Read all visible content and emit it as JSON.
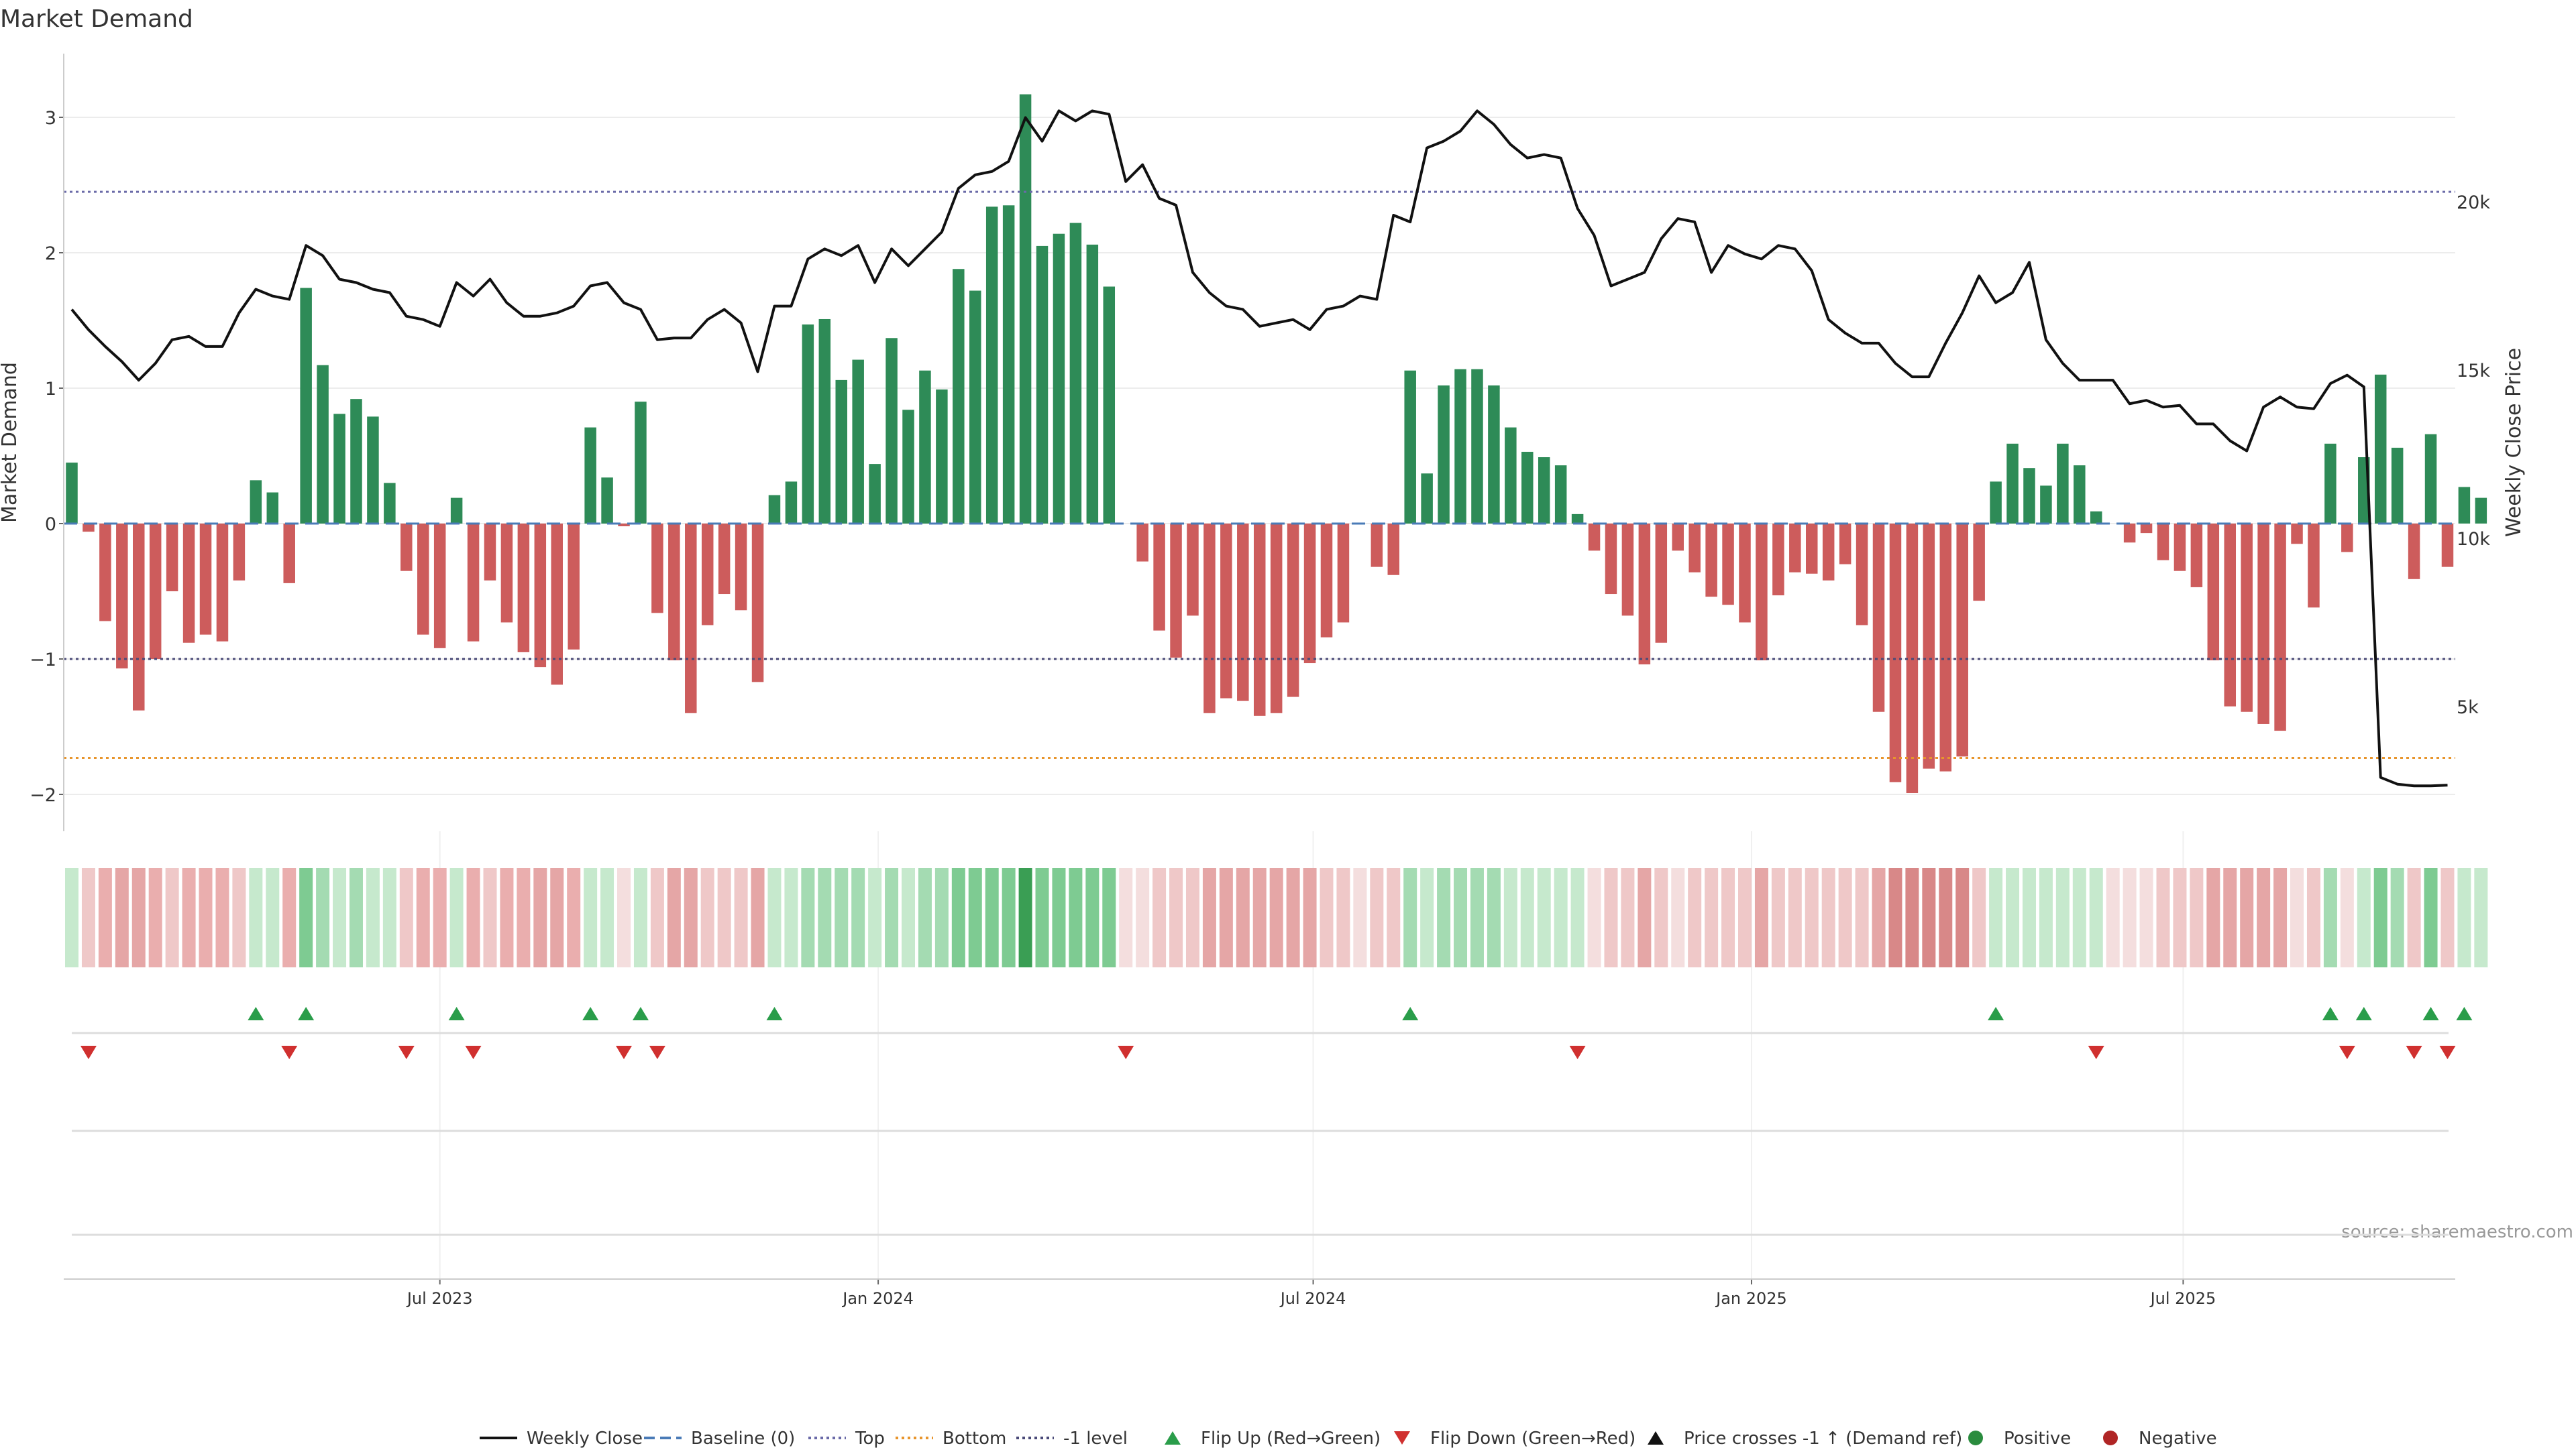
{
  "chart_data": {
    "type": "bar",
    "title": "Market Demand",
    "ylabel": "Market Demand",
    "y2label": "Weekly Close Price",
    "ylim": [
      -2.3,
      3.5
    ],
    "y2lim": [
      1300,
      24400
    ],
    "yticks": [
      {
        "v": 3,
        "t": "3"
      },
      {
        "v": 2,
        "t": "2"
      },
      {
        "v": 1,
        "t": "1"
      },
      {
        "v": 0,
        "t": "0"
      },
      {
        "v": -1,
        "t": "−1"
      },
      {
        "v": -2,
        "t": "−2"
      }
    ],
    "y2ticks": [
      {
        "v": 20000,
        "t": "20k"
      },
      {
        "v": 15000,
        "t": "15k"
      },
      {
        "v": 10000,
        "t": "10k"
      },
      {
        "v": 5000,
        "t": "5k"
      }
    ],
    "xticks": [
      {
        "i": 22,
        "t": "Jul 2023"
      },
      {
        "i": 48.2,
        "t": "Jan 2024"
      },
      {
        "i": 74.2,
        "t": "Jul 2024"
      },
      {
        "i": 100.4,
        "t": "Jan 2025"
      },
      {
        "i": 126.2,
        "t": "Jul 2025"
      }
    ],
    "ref_lines": {
      "top": 2.45,
      "bottom": -1.73,
      "minus_one": -1
    },
    "series": [
      {
        "name": "Market Demand",
        "values": [
          0.45,
          -0.06,
          -0.72,
          -1.07,
          -1.38,
          -1.0,
          -0.5,
          -0.88,
          -0.82,
          -0.87,
          -0.42,
          0.32,
          0.23,
          -0.44,
          1.74,
          1.17,
          0.81,
          0.92,
          0.79,
          0.3,
          -0.35,
          -0.82,
          -0.92,
          0.19,
          -0.87,
          -0.42,
          -0.73,
          -0.95,
          -1.06,
          -1.19,
          -0.93,
          0.71,
          0.34,
          -0.02,
          0.9,
          -0.66,
          -1.01,
          -1.4,
          -0.75,
          -0.52,
          -0.64,
          -1.17,
          0.21,
          0.31,
          1.47,
          1.51,
          1.06,
          1.21,
          0.44,
          1.37,
          0.84,
          1.13,
          0.99,
          1.88,
          1.72,
          2.34,
          2.35,
          3.17,
          2.05,
          2.14,
          2.22,
          2.06,
          1.75,
          0.0,
          -0.28,
          -0.79,
          -0.99,
          -0.68,
          -1.4,
          -1.29,
          -1.31,
          -1.42,
          -1.4,
          -1.28,
          -1.03,
          -0.84,
          -0.73,
          -0.0,
          -0.32,
          -0.38,
          1.13,
          0.37,
          1.02,
          1.14,
          1.14,
          1.02,
          0.71,
          0.53,
          0.49,
          0.43,
          0.07,
          -0.2,
          -0.52,
          -0.68,
          -1.04,
          -0.88,
          -0.2,
          -0.36,
          -0.54,
          -0.6,
          -0.73,
          -1.01,
          -0.53,
          -0.36,
          -0.37,
          -0.42,
          -0.3,
          -0.75,
          -1.39,
          -1.91,
          -1.99,
          -1.81,
          -1.83,
          -1.72,
          -0.57,
          0.31,
          0.59,
          0.41,
          0.28,
          0.59,
          0.43,
          0.09,
          0.0,
          -0.14,
          -0.07,
          -0.27,
          -0.35,
          -0.47,
          -1.01,
          -1.35,
          -1.39,
          -1.48,
          -1.53,
          -0.15,
          -0.62,
          0.59,
          -0.21,
          0.49,
          1.1,
          0.56,
          -0.41,
          0.66,
          -0.32,
          0.27,
          0.19
        ]
      },
      {
        "name": "Weekly Close",
        "values": [
          16800,
          16200,
          15700,
          15250,
          14700,
          15200,
          15900,
          16000,
          15700,
          15700,
          16700,
          17400,
          17200,
          17100,
          18700,
          18400,
          17700,
          17600,
          17400,
          17300,
          16600,
          16500,
          16300,
          17600,
          17200,
          17700,
          17000,
          16600,
          16600,
          16700,
          16900,
          17500,
          17600,
          17000,
          16800,
          15900,
          15950,
          15950,
          16500,
          16800,
          16400,
          14950,
          16900,
          16900,
          18300,
          18600,
          18400,
          18700,
          17600,
          18600,
          18100,
          18600,
          19100,
          20400,
          20800,
          20900,
          21200,
          22500,
          21800,
          22700,
          22400,
          22700,
          22600,
          20600,
          21100,
          20100,
          19900,
          17900,
          17300,
          16900,
          16800,
          16300,
          16400,
          16500,
          16200,
          16800,
          16900,
          17200,
          17100,
          19600,
          19400,
          21600,
          21800,
          22100,
          22700,
          22300,
          21700,
          21300,
          21400,
          21300,
          19800,
          19000,
          17500,
          17700,
          17900,
          18900,
          19500,
          19400,
          17900,
          18700,
          18450,
          18300,
          18700,
          18600,
          17950,
          16500,
          16100,
          15800,
          15800,
          15200,
          14800,
          14800,
          15800,
          16700,
          17800,
          17000,
          17300,
          18200,
          15900,
          15200,
          14700,
          14700,
          14700,
          14000,
          14100,
          13900,
          13950,
          13400,
          13400,
          12900,
          12600,
          13900,
          14200,
          13900,
          13850,
          14600,
          14850,
          14500,
          2900,
          2700,
          2650,
          2650,
          2670
        ]
      }
    ],
    "heat_strip": {
      "colors": [
        "#c6e9cd",
        "#efc8c8",
        "#eaaeae",
        "#e5a6a6",
        "#e5a6a6",
        "#eaaeae",
        "#efc8c8",
        "#eaaeae",
        "#eaaeae",
        "#eaaeae",
        "#efc8c8",
        "#c6e9cd",
        "#c6e9cd",
        "#eaaeae",
        "#7ecb92",
        "#a4dbb2",
        "#c6e9cd",
        "#a4dbb2",
        "#c6e9cd",
        "#c6e9cd",
        "#efc8c8",
        "#eaaeae",
        "#eaaeae",
        "#c6e9cd",
        "#eaaeae",
        "#efc8c8",
        "#eaaeae",
        "#eaaeae",
        "#e5a6a6",
        "#e5a6a6",
        "#eaaeae",
        "#c6e9cd",
        "#c6e9cd",
        "#f4dede",
        "#c6e9cd",
        "#efc8c8",
        "#e5a6a6",
        "#e5a6a6",
        "#efc8c8",
        "#efc8c8",
        "#efc8c8",
        "#e5a6a6",
        "#c6e9cd",
        "#c6e9cd",
        "#a4dbb2",
        "#a4dbb2",
        "#a4dbb2",
        "#a4dbb2",
        "#c6e9cd",
        "#a4dbb2",
        "#c6e9cd",
        "#a4dbb2",
        "#a4dbb2",
        "#7ecb92",
        "#7ecb92",
        "#7ecb92",
        "#7ecb92",
        "#3a9e54",
        "#7ecb92",
        "#7ecb92",
        "#7ecb92",
        "#7ecb92",
        "#7ecb92",
        "#f4dede",
        "#f4dede",
        "#efc8c8",
        "#efc8c8",
        "#efc8c8",
        "#e5a6a6",
        "#e5a6a6",
        "#e5a6a6",
        "#e5a6a6",
        "#e5a6a6",
        "#e5a6a6",
        "#e5a6a6",
        "#efc8c8",
        "#efc8c8",
        "#f4dede",
        "#efc8c8",
        "#efc8c8",
        "#a4dbb2",
        "#c6e9cd",
        "#a4dbb2",
        "#a4dbb2",
        "#a4dbb2",
        "#a4dbb2",
        "#c6e9cd",
        "#c6e9cd",
        "#c6e9cd",
        "#c6e9cd",
        "#c6e9cd",
        "#f4dede",
        "#efc8c8",
        "#efc8c8",
        "#e5a6a6",
        "#efc8c8",
        "#f4dede",
        "#efc8c8",
        "#efc8c8",
        "#efc8c8",
        "#efc8c8",
        "#e5a6a6",
        "#efc8c8",
        "#efc8c8",
        "#efc8c8",
        "#efc8c8",
        "#efc8c8",
        "#efc8c8",
        "#e5a6a6",
        "#d88888",
        "#d88888",
        "#d88888",
        "#d88888",
        "#d88888",
        "#efc8c8",
        "#c6e9cd",
        "#c6e9cd",
        "#c6e9cd",
        "#c6e9cd",
        "#c6e9cd",
        "#c6e9cd",
        "#c6e9cd",
        "#f4dede",
        "#f4dede",
        "#f4dede",
        "#efc8c8",
        "#efc8c8",
        "#efc8c8",
        "#e5a6a6",
        "#e5a6a6",
        "#e5a6a6",
        "#e5a6a6",
        "#e5a6a6",
        "#f4dede",
        "#efc8c8",
        "#a4dbb2",
        "#f4dede",
        "#c6e9cd",
        "#7ecb92",
        "#a4dbb2",
        "#efc8c8",
        "#7ecb92",
        "#efc8c8",
        "#c6e9cd",
        "#c6e9cd"
      ]
    },
    "flip_up_indices": [
      11,
      14,
      23,
      31,
      34,
      42,
      80,
      115,
      135,
      137,
      141,
      143
    ],
    "flip_down_indices": [
      1,
      13,
      20,
      24,
      33,
      35,
      63,
      90,
      121,
      136,
      140,
      142
    ],
    "legend_position": "bottom-center",
    "legend": [
      {
        "label": "Weekly Close",
        "kind": "line",
        "color": "#111111"
      },
      {
        "label": "Baseline (0)",
        "kind": "dash",
        "color": "#4a7bb7"
      },
      {
        "label": "Top",
        "kind": "dot",
        "color": "#6a6aa8"
      },
      {
        "label": "Bottom",
        "kind": "dot",
        "color": "#e8952c"
      },
      {
        "label": "-1 level",
        "kind": "dot",
        "color": "#4a4a78"
      },
      {
        "label": "Flip Up (Red→Green)",
        "kind": "tri-up",
        "color": "#2a9d4a"
      },
      {
        "label": "Flip Down (Green→Red)",
        "kind": "tri-down",
        "color": "#d0302f"
      },
      {
        "label": "Price crosses -1 ↑ (Demand ref)",
        "kind": "tri-up",
        "color": "#111111"
      },
      {
        "label": "Positive",
        "kind": "circle",
        "color": "#2a8c3e"
      },
      {
        "label": "Negative",
        "kind": "circle",
        "color": "#b02525"
      }
    ],
    "source": "source: sharemaestro.com",
    "colors": {
      "positive_bar": "#2e8b57",
      "negative_bar": "#cd5c5c",
      "grid": "#ececec",
      "axis": "#cccccc",
      "text": "#333333"
    }
  }
}
